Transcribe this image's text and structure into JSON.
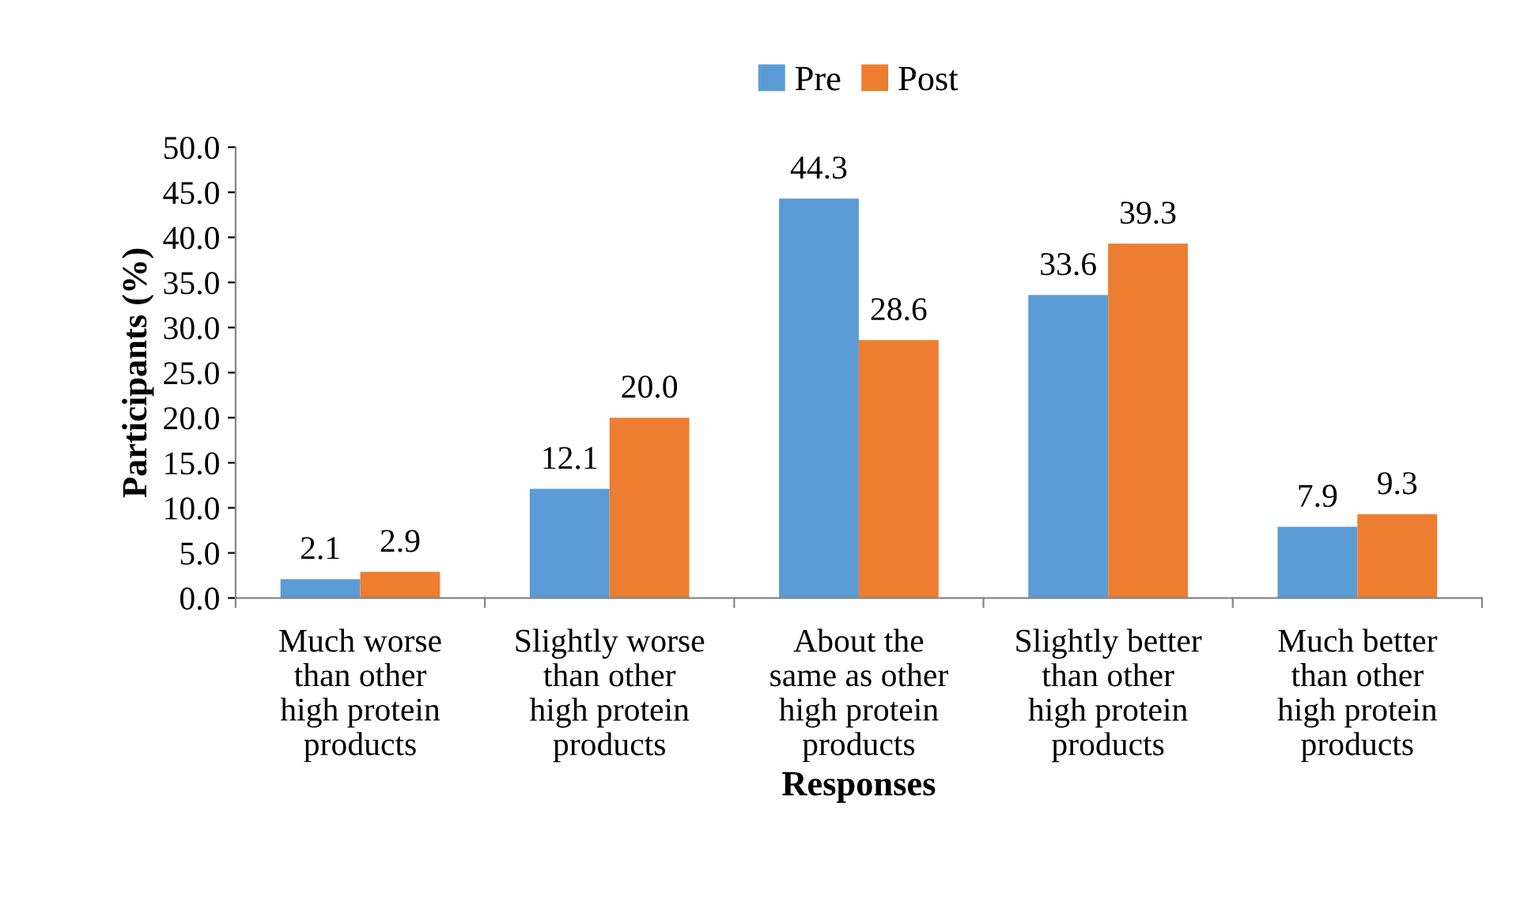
{
  "chart_data": {
    "type": "bar",
    "xlabel": "Responses",
    "ylabel": "Participants (%)",
    "categories": [
      "Much worse\nthan other\nhigh protein\nproducts",
      "Slightly worse\nthan other\nhigh protein\nproducts",
      "About the\nsame as other\nhigh protein\nproducts",
      "Slightly better\nthan other\nhigh protein\nproducts",
      "Much better\nthan other\nhigh protein\nproducts"
    ],
    "series": [
      {
        "name": "Pre",
        "color": "#5b9bd5",
        "values": [
          2.1,
          12.1,
          44.3,
          33.6,
          7.9
        ],
        "value_labels": [
          "2.1",
          "12.1",
          "44.3",
          "33.6",
          "7.9"
        ]
      },
      {
        "name": "Post",
        "color": "#ed7d31",
        "values": [
          2.9,
          20.0,
          28.6,
          39.3,
          9.3
        ],
        "value_labels": [
          "2.9",
          "20.0",
          "28.6",
          "39.3",
          "9.3"
        ]
      }
    ],
    "ylim": [
      0,
      50
    ],
    "yticks": [
      {
        "value": 0,
        "label": "0.0"
      },
      {
        "value": 5,
        "label": "5.0"
      },
      {
        "value": 10,
        "label": "10.0"
      },
      {
        "value": 15,
        "label": "15.0"
      },
      {
        "value": 20,
        "label": "20.0"
      },
      {
        "value": 25,
        "label": "25.0"
      },
      {
        "value": 30,
        "label": "30.0"
      },
      {
        "value": 35,
        "label": "35.0"
      },
      {
        "value": 40,
        "label": "40.0"
      },
      {
        "value": 45,
        "label": "45.0"
      },
      {
        "value": 50,
        "label": "50.0"
      }
    ],
    "legend": "top",
    "grid": false
  }
}
